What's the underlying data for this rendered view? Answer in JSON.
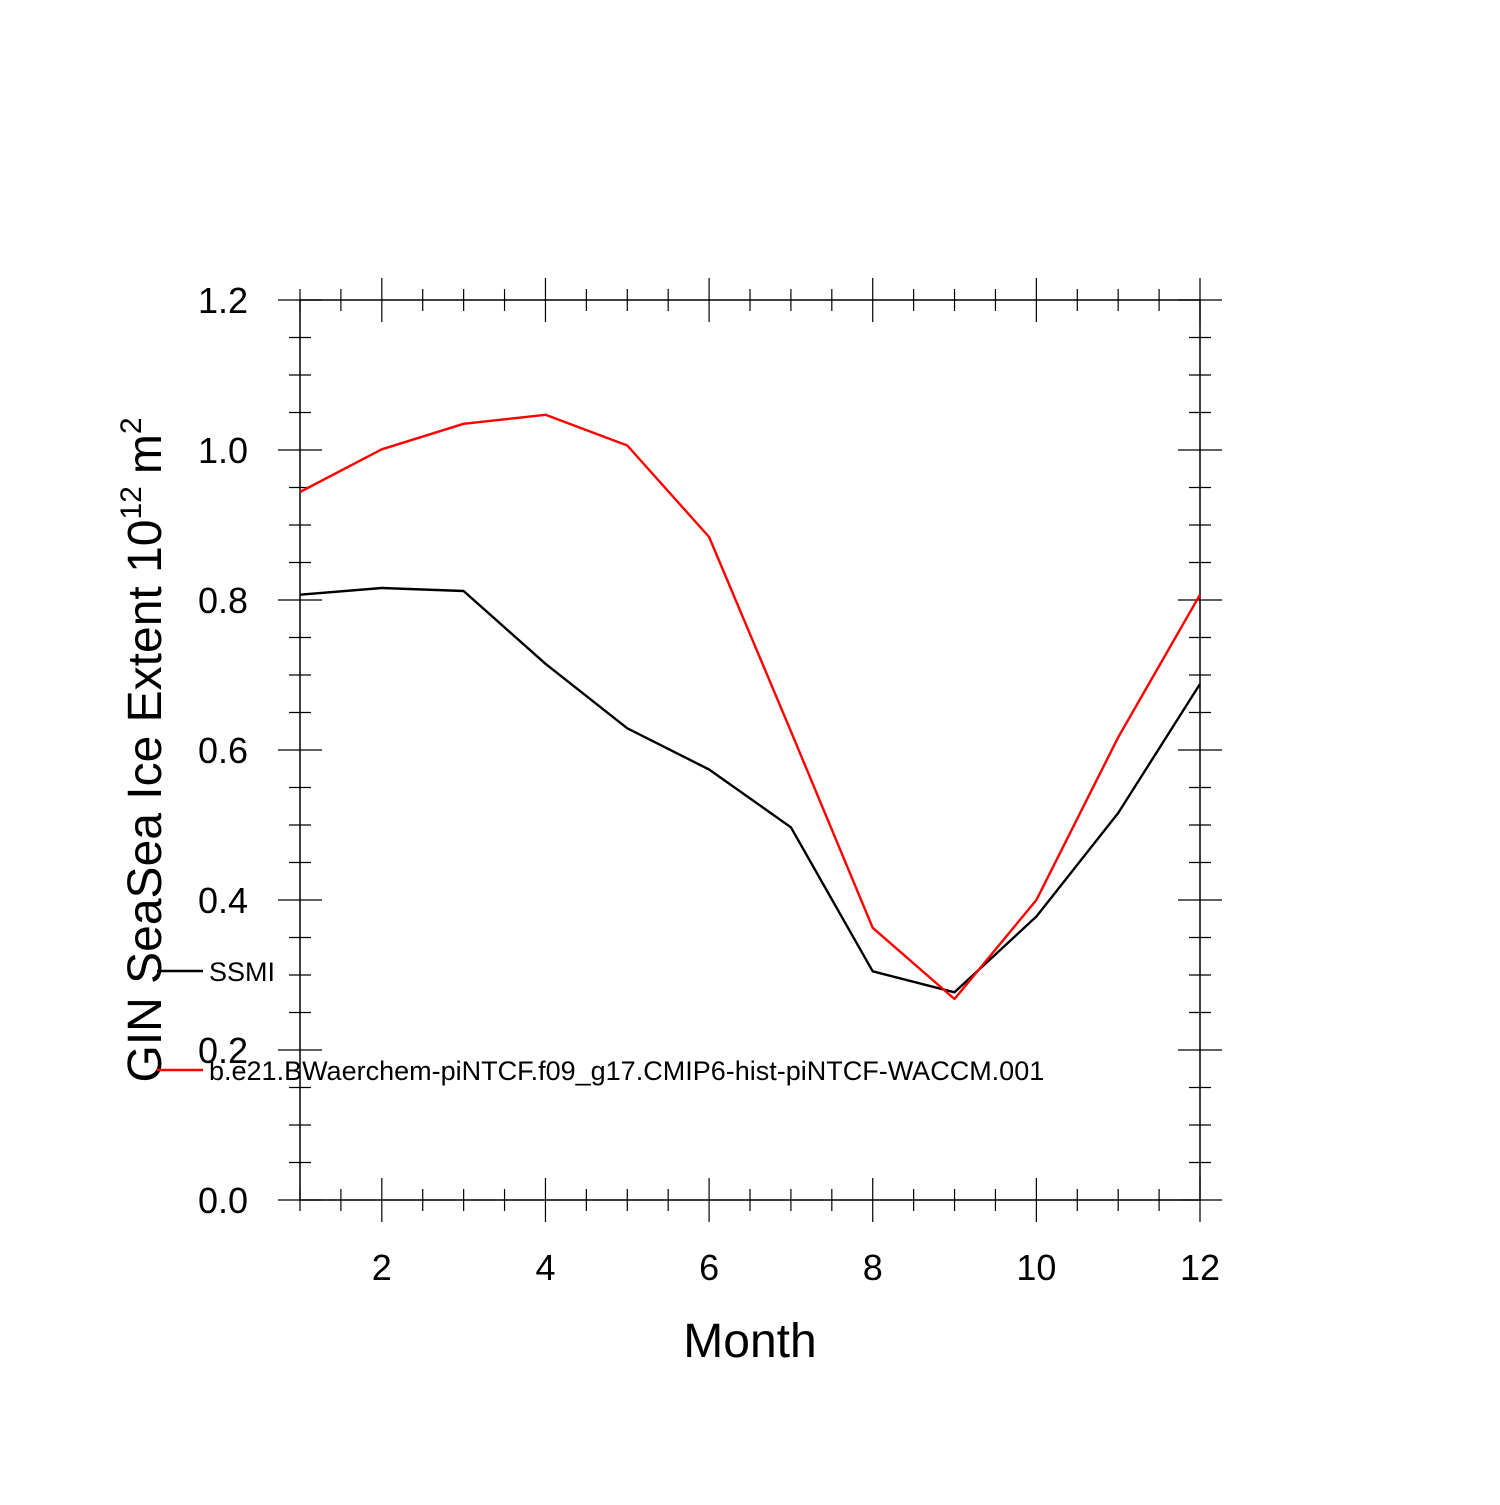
{
  "chart_data": {
    "type": "line",
    "title": "",
    "xlabel": "Month",
    "ylabel": {
      "text": "GIN SeaSea Ice Extent 10",
      "exponent": "12",
      "unit": "m",
      "unit_exponent": "2"
    },
    "x": [
      1,
      2,
      3,
      4,
      5,
      6,
      7,
      8,
      9,
      10,
      11,
      12
    ],
    "xlim": [
      1,
      12
    ],
    "ylim": [
      0.0,
      1.2
    ],
    "xticks": [
      "2",
      "4",
      "6",
      "8",
      "10",
      "12"
    ],
    "yticks": [
      "0.0",
      "0.2",
      "0.4",
      "0.6",
      "0.8",
      "1.0",
      "1.2"
    ],
    "grid": false,
    "legend_placement": "left, inside plot",
    "series": [
      {
        "name": "SSMI",
        "color": "#000000",
        "values": [
          0.807,
          0.816,
          0.812,
          0.715,
          0.629,
          0.574,
          0.497,
          0.305,
          0.277,
          0.378,
          0.516,
          0.688
        ]
      },
      {
        "name": "b.e21.BWaerchem-piNTCF.f09_g17.CMIP6-hist-piNTCF-WACCM.001",
        "color": "#ff0000",
        "values": [
          0.944,
          1.001,
          1.035,
          1.047,
          1.006,
          0.884,
          0.625,
          0.363,
          0.268,
          0.4,
          0.617,
          0.807
        ]
      }
    ]
  }
}
